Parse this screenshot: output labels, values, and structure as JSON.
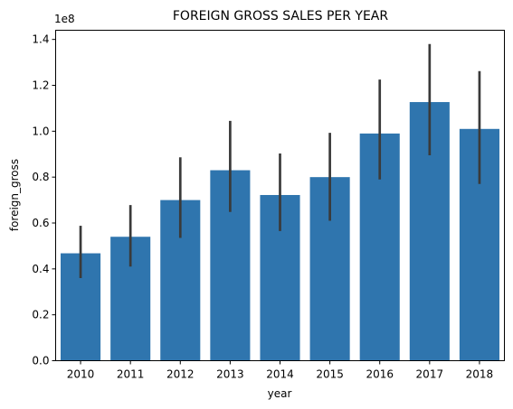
{
  "chart_data": {
    "type": "bar",
    "title": "FOREIGN GROSS SALES PER YEAR",
    "xlabel": "year",
    "ylabel": "foreign_gross",
    "y_offset_label": "1e8",
    "categories": [
      "2010",
      "2011",
      "2012",
      "2013",
      "2014",
      "2015",
      "2016",
      "2017",
      "2018"
    ],
    "values": [
      0.468,
      0.54,
      0.7,
      0.83,
      0.722,
      0.8,
      0.99,
      1.127,
      1.01
    ],
    "error_low": [
      0.36,
      0.41,
      0.535,
      0.648,
      0.565,
      0.61,
      0.79,
      0.895,
      0.77
    ],
    "error_high": [
      0.588,
      0.678,
      0.886,
      1.045,
      0.903,
      0.993,
      1.225,
      1.38,
      1.262
    ],
    "yticks": [
      "0.0",
      "0.2",
      "0.4",
      "0.6",
      "0.8",
      "1.0",
      "1.2",
      "1.4"
    ],
    "ylim": [
      0,
      1.4
    ],
    "bar_color": "#2f75ae",
    "error_color": "#3a3a3a",
    "grid": false
  }
}
